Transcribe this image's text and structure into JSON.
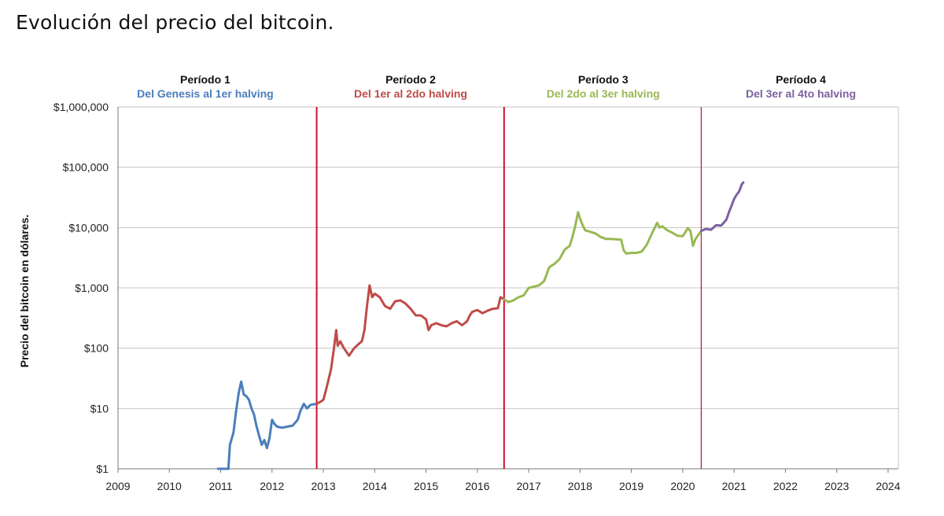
{
  "page": {
    "title": "Evolución del precio del bitcoin."
  },
  "chart_data": {
    "type": "line",
    "title": "Evolución del precio del bitcoin.",
    "xlabel": "",
    "ylabel": "Precio del bitcoin en dólares.",
    "y_scale": "log",
    "ylim": [
      1,
      1000000
    ],
    "xlim": [
      2009,
      2024.2
    ],
    "x_ticks": [
      "2009",
      "2010",
      "2011",
      "2012",
      "2013",
      "2014",
      "2015",
      "2016",
      "2017",
      "2018",
      "2019",
      "2020",
      "2021",
      "2022",
      "2023",
      "2024"
    ],
    "y_ticks": [
      {
        "value": 1,
        "label": "$1"
      },
      {
        "value": 10,
        "label": "$10"
      },
      {
        "value": 100,
        "label": "$100"
      },
      {
        "value": 1000,
        "label": "$1,000"
      },
      {
        "value": 10000,
        "label": "$10,000"
      },
      {
        "value": 100000,
        "label": "$100,000"
      },
      {
        "value": 1000000,
        "label": "$1,000,000"
      }
    ],
    "grid": true,
    "halvings": [
      2012.87,
      2016.52,
      2020.36
    ],
    "halving_color": "#c8102e",
    "periods": [
      {
        "title": "Período 1",
        "subtitle": "Del Genesis al 1er halving",
        "color": "#4a7ebb",
        "x_center": 2010.7
      },
      {
        "title": "Período 2",
        "subtitle": "Del 1er al 2do halving",
        "color": "#be4b48",
        "x_center": 2014.7
      },
      {
        "title": "Período 3",
        "subtitle": "Del 2do al 3er halving",
        "color": "#98b954",
        "x_center": 2018.45
      },
      {
        "title": "Período 4",
        "subtitle": "Del 3er al 4to halving",
        "color": "#7d60a0",
        "x_center": 2022.3
      }
    ],
    "series": [
      {
        "color": "#4a7ebb",
        "points": [
          [
            2010.95,
            1.0
          ],
          [
            2011.05,
            1.0
          ],
          [
            2011.15,
            1.0
          ],
          [
            2011.18,
            2.5
          ],
          [
            2011.25,
            4
          ],
          [
            2011.3,
            9
          ],
          [
            2011.35,
            18
          ],
          [
            2011.4,
            28
          ],
          [
            2011.45,
            17
          ],
          [
            2011.5,
            16
          ],
          [
            2011.55,
            14
          ],
          [
            2011.6,
            10
          ],
          [
            2011.65,
            8
          ],
          [
            2011.7,
            5
          ],
          [
            2011.75,
            3.5
          ],
          [
            2011.8,
            2.5
          ],
          [
            2011.85,
            3.0
          ],
          [
            2011.9,
            2.2
          ],
          [
            2011.95,
            3.2
          ],
          [
            2012.0,
            6.5
          ],
          [
            2012.05,
            5.5
          ],
          [
            2012.1,
            5
          ],
          [
            2012.2,
            4.8
          ],
          [
            2012.3,
            5.0
          ],
          [
            2012.4,
            5.2
          ],
          [
            2012.5,
            6.5
          ],
          [
            2012.55,
            9
          ],
          [
            2012.62,
            12
          ],
          [
            2012.68,
            10
          ],
          [
            2012.75,
            11.5
          ],
          [
            2012.87,
            12
          ]
        ]
      },
      {
        "color": "#be4b48",
        "points": [
          [
            2012.87,
            12
          ],
          [
            2012.95,
            13
          ],
          [
            2013.0,
            14
          ],
          [
            2013.05,
            20
          ],
          [
            2013.1,
            30
          ],
          [
            2013.15,
            45
          ],
          [
            2013.2,
            90
          ],
          [
            2013.25,
            200
          ],
          [
            2013.28,
            110
          ],
          [
            2013.33,
            130
          ],
          [
            2013.4,
            100
          ],
          [
            2013.5,
            75
          ],
          [
            2013.6,
            100
          ],
          [
            2013.7,
            120
          ],
          [
            2013.75,
            130
          ],
          [
            2013.8,
            200
          ],
          [
            2013.85,
            500
          ],
          [
            2013.9,
            1100
          ],
          [
            2013.95,
            700
          ],
          [
            2014.0,
            800
          ],
          [
            2014.1,
            700
          ],
          [
            2014.2,
            500
          ],
          [
            2014.3,
            450
          ],
          [
            2014.4,
            600
          ],
          [
            2014.5,
            620
          ],
          [
            2014.6,
            550
          ],
          [
            2014.7,
            450
          ],
          [
            2014.8,
            350
          ],
          [
            2014.9,
            350
          ],
          [
            2015.0,
            300
          ],
          [
            2015.05,
            200
          ],
          [
            2015.1,
            240
          ],
          [
            2015.2,
            260
          ],
          [
            2015.3,
            240
          ],
          [
            2015.4,
            230
          ],
          [
            2015.5,
            260
          ],
          [
            2015.6,
            280
          ],
          [
            2015.7,
            240
          ],
          [
            2015.8,
            280
          ],
          [
            2015.85,
            350
          ],
          [
            2015.9,
            400
          ],
          [
            2016.0,
            430
          ],
          [
            2016.1,
            380
          ],
          [
            2016.2,
            420
          ],
          [
            2016.3,
            450
          ],
          [
            2016.4,
            460
          ],
          [
            2016.45,
            700
          ],
          [
            2016.52,
            650
          ]
        ]
      },
      {
        "color": "#98b954",
        "points": [
          [
            2016.52,
            650
          ],
          [
            2016.6,
            580
          ],
          [
            2016.7,
            620
          ],
          [
            2016.8,
            700
          ],
          [
            2016.9,
            750
          ],
          [
            2017.0,
            1000
          ],
          [
            2017.1,
            1050
          ],
          [
            2017.2,
            1100
          ],
          [
            2017.3,
            1300
          ],
          [
            2017.4,
            2200
          ],
          [
            2017.5,
            2500
          ],
          [
            2017.6,
            3000
          ],
          [
            2017.7,
            4300
          ],
          [
            2017.8,
            5000
          ],
          [
            2017.85,
            7000
          ],
          [
            2017.9,
            10000
          ],
          [
            2017.96,
            18000
          ],
          [
            2018.0,
            14000
          ],
          [
            2018.05,
            11000
          ],
          [
            2018.1,
            9000
          ],
          [
            2018.2,
            8500
          ],
          [
            2018.3,
            8000
          ],
          [
            2018.4,
            7000
          ],
          [
            2018.5,
            6500
          ],
          [
            2018.6,
            6500
          ],
          [
            2018.7,
            6400
          ],
          [
            2018.8,
            6300
          ],
          [
            2018.85,
            4200
          ],
          [
            2018.9,
            3700
          ],
          [
            2019.0,
            3800
          ],
          [
            2019.1,
            3800
          ],
          [
            2019.2,
            4000
          ],
          [
            2019.3,
            5200
          ],
          [
            2019.4,
            8000
          ],
          [
            2019.5,
            12000
          ],
          [
            2019.55,
            10000
          ],
          [
            2019.6,
            10500
          ],
          [
            2019.7,
            9000
          ],
          [
            2019.8,
            8200
          ],
          [
            2019.9,
            7300
          ],
          [
            2020.0,
            7200
          ],
          [
            2020.1,
            9800
          ],
          [
            2020.15,
            8800
          ],
          [
            2020.2,
            5000
          ],
          [
            2020.25,
            6500
          ],
          [
            2020.36,
            8800
          ]
        ]
      },
      {
        "color": "#7d60a0",
        "points": [
          [
            2020.36,
            8800
          ],
          [
            2020.45,
            9500
          ],
          [
            2020.55,
            9200
          ],
          [
            2020.65,
            11000
          ],
          [
            2020.75,
            10800
          ],
          [
            2020.85,
            13500
          ],
          [
            2020.9,
            18000
          ],
          [
            2020.95,
            23000
          ],
          [
            2021.0,
            30000
          ],
          [
            2021.05,
            35000
          ],
          [
            2021.1,
            40000
          ],
          [
            2021.15,
            52000
          ],
          [
            2021.18,
            56000
          ]
        ]
      }
    ]
  }
}
